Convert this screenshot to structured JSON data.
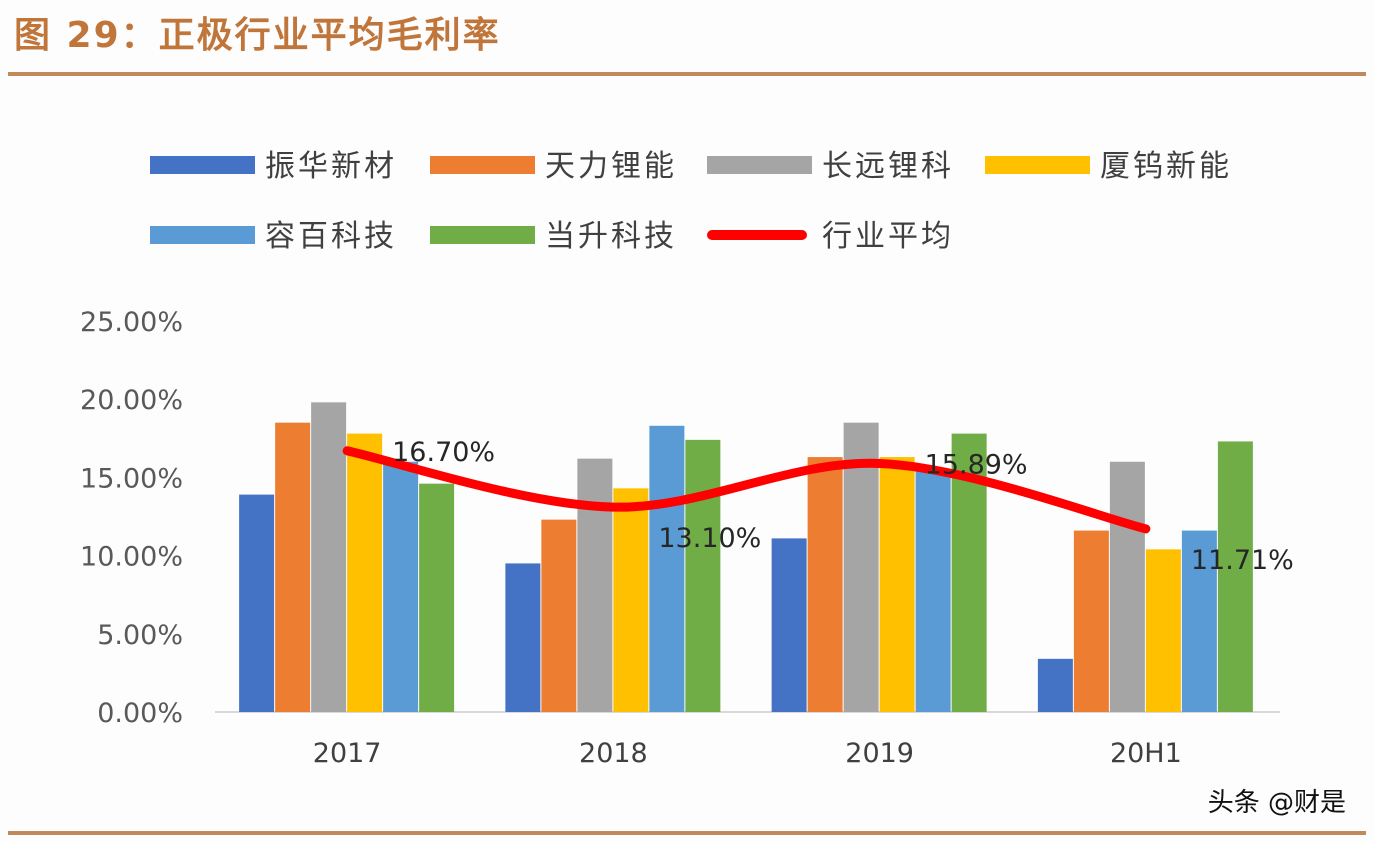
{
  "title": "图 29：正极行业平均毛利率",
  "watermark": "头条 @财是",
  "chart_data": {
    "type": "bar",
    "categories": [
      "2017",
      "2018",
      "2019",
      "20H1"
    ],
    "ylim": [
      0,
      25
    ],
    "yticks": [
      "0.00%",
      "5.00%",
      "10.00%",
      "15.00%",
      "20.00%",
      "25.00%"
    ],
    "grid": false,
    "legend_position": "top",
    "series": [
      {
        "name": "振华新材",
        "color": "#4472c4",
        "values": [
          13.9,
          9.5,
          11.1,
          3.4
        ]
      },
      {
        "name": "天力锂能",
        "color": "#ed7d31",
        "values": [
          18.5,
          12.3,
          16.3,
          11.6
        ]
      },
      {
        "name": "长远锂科",
        "color": "#a5a5a5",
        "values": [
          19.8,
          16.2,
          18.5,
          16.0
        ]
      },
      {
        "name": "厦钨新能",
        "color": "#ffc000",
        "values": [
          17.8,
          14.3,
          16.3,
          10.4
        ]
      },
      {
        "name": "容百科技",
        "color": "#5b9bd5",
        "values": [
          16.0,
          18.3,
          15.5,
          11.6
        ]
      },
      {
        "name": "当升科技",
        "color": "#70ad47",
        "values": [
          14.6,
          17.4,
          17.8,
          17.3
        ]
      }
    ],
    "line_series": {
      "name": "行业平均",
      "color": "#ff0000",
      "type": "line",
      "smooth": true,
      "values": [
        16.7,
        13.1,
        15.89,
        11.71
      ],
      "data_labels": [
        "16.70%",
        "13.10%",
        "15.89%",
        "11.71%"
      ]
    }
  }
}
